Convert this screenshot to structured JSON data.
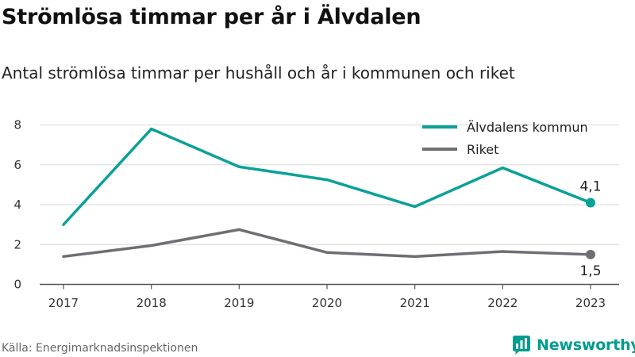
{
  "chart_data": {
    "type": "line",
    "title": "Strömlösa timmar per år i Älvdalen",
    "subtitle": "Antal strömlösa timmar per hushåll och år i kommunen och riket",
    "x": [
      2017,
      2018,
      2019,
      2020,
      2021,
      2022,
      2023
    ],
    "x_tick_labels": [
      "2017",
      "2018",
      "2019",
      "2020",
      "2021",
      "2022",
      "2023"
    ],
    "ylim": [
      0,
      8
    ],
    "y_ticks": [
      0,
      2,
      4,
      6,
      8
    ],
    "y_tick_labels": [
      "0",
      "2",
      "4",
      "6",
      "8"
    ],
    "grid": true,
    "legend_position": "top-right",
    "series": [
      {
        "name": "Älvdalens kommun",
        "color": "#0aa198",
        "values": [
          3.0,
          7.8,
          5.9,
          5.25,
          3.9,
          5.85,
          4.1
        ],
        "end_label": "4,1"
      },
      {
        "name": "Riket",
        "color": "#6e6e73",
        "values": [
          1.4,
          1.95,
          2.75,
          1.6,
          1.4,
          1.65,
          1.5
        ],
        "end_label": "1,5"
      }
    ]
  },
  "footer": {
    "source": "Källa: Energimarknadsinspektionen",
    "brand": "Newsworthy",
    "brand_icon": "newsworthy-logo-icon",
    "brand_color": "#009c8e"
  }
}
